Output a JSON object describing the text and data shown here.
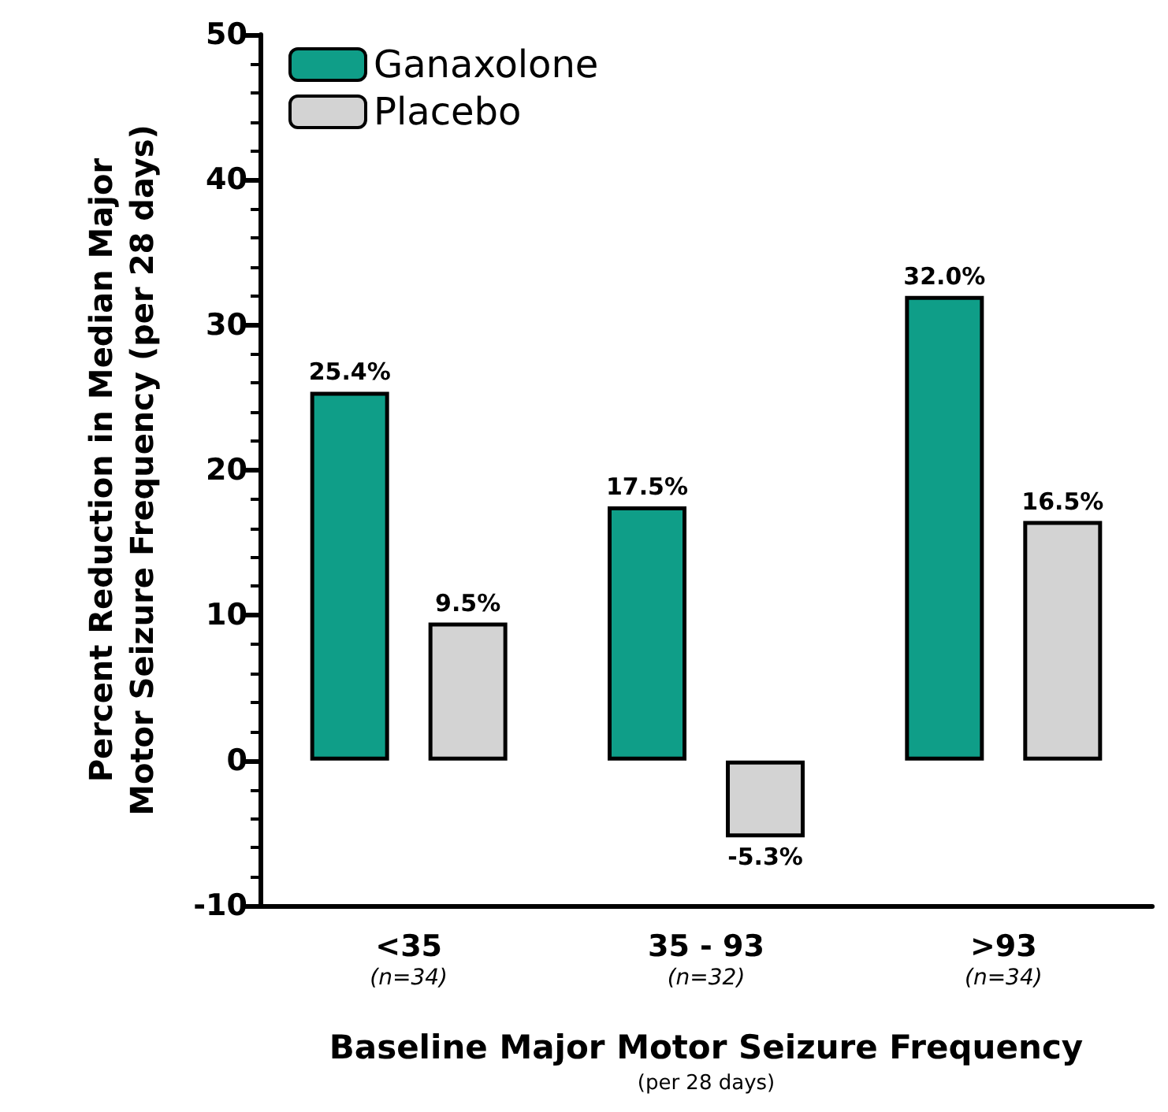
{
  "chart_data": {
    "type": "bar",
    "categories": [
      "<35\n(n=34)",
      "35 - 93\n(n=32)",
      ">93\n(n=34)"
    ],
    "series": [
      {
        "name": "Ganaxolone",
        "color": "#0f9e88",
        "values": [
          25.4,
          17.5,
          32.0
        ],
        "value_labels": [
          "25.4%",
          "17.5%",
          "32.0%"
        ]
      },
      {
        "name": "Placebo",
        "color": "#d3d3d3",
        "values": [
          9.5,
          -5.3,
          16.5
        ],
        "value_labels": [
          "9.5%",
          "-5.3%",
          "16.5%"
        ]
      }
    ],
    "xlabel": "Baseline Major Motor Seizure Frequency\n(per 28 days)",
    "ylabel": "Percent Reduction in Median Major\nMotor Seizure Frequency (per 28 days)",
    "ylim": [
      -10,
      50
    ],
    "yticks": [
      -10,
      0,
      10,
      20,
      30,
      40,
      50
    ],
    "legend": "top left",
    "grid": false
  }
}
